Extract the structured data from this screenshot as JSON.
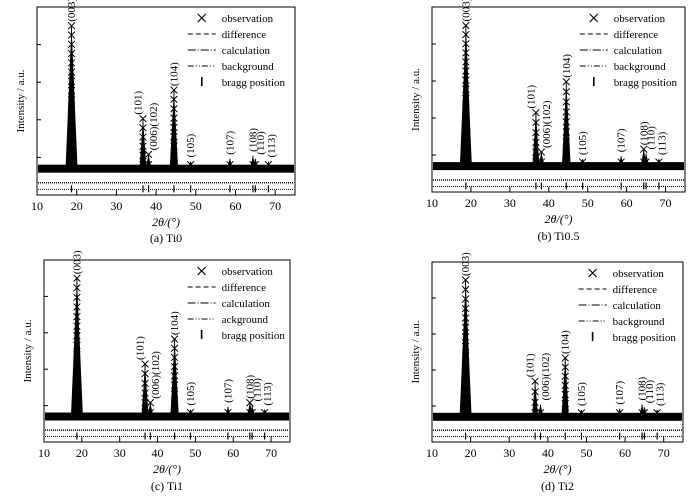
{
  "figure": {
    "panels": [
      {
        "caption": "(a) Ti0"
      },
      {
        "caption": "(b) Ti0.5"
      },
      {
        "caption": "(c) Ti1"
      },
      {
        "caption": "(d) Ti2"
      }
    ]
  },
  "chart_data": [
    {
      "type": "scatter",
      "caption": "(a) Ti0",
      "xlabel": "2θ/(°)",
      "ylabel": "Intensity / a.u.",
      "xlim": [
        10,
        75
      ],
      "xticks": [
        10,
        20,
        30,
        40,
        50,
        60,
        70
      ],
      "ylim": [
        0,
        100
      ],
      "legend": [
        "observation",
        "difference",
        "calculation",
        "background",
        "bragg position"
      ],
      "peaks": [
        {
          "label": "(003)",
          "x": 18.7,
          "y": 100
        },
        {
          "label": "(101)",
          "x": 36.7,
          "y": 35
        },
        {
          "label": "(006)(102)",
          "x": 38.1,
          "y": 10
        },
        {
          "label": "(104)",
          "x": 44.5,
          "y": 55
        },
        {
          "label": "(105)",
          "x": 48.7,
          "y": 5
        },
        {
          "label": "(107)",
          "x": 58.6,
          "y": 7
        },
        {
          "label": "(108)",
          "x": 64.4,
          "y": 9
        },
        {
          "label": "(110)",
          "x": 65.0,
          "y": 7
        },
        {
          "label": "(113)",
          "x": 68.3,
          "y": 5
        }
      ]
    },
    {
      "type": "scatter",
      "caption": "(b) Ti0.5",
      "xlabel": "2θ/(°)",
      "ylabel": "Intensity / a.u.",
      "xlim": [
        10,
        75
      ],
      "xticks": [
        10,
        20,
        30,
        40,
        50,
        60,
        70
      ],
      "ylim": [
        0,
        100
      ],
      "legend": [
        "observation",
        "difference",
        "calculation",
        "background",
        "bragg position"
      ],
      "peaks": [
        {
          "label": "(003)",
          "x": 18.7,
          "y": 100
        },
        {
          "label": "(101)",
          "x": 36.7,
          "y": 38
        },
        {
          "label": "(006)(102)",
          "x": 38.1,
          "y": 10
        },
        {
          "label": "(104)",
          "x": 44.5,
          "y": 60
        },
        {
          "label": "(105)",
          "x": 48.7,
          "y": 5
        },
        {
          "label": "(107)",
          "x": 58.6,
          "y": 7
        },
        {
          "label": "(108)",
          "x": 64.4,
          "y": 12
        },
        {
          "label": "(110)",
          "x": 65.0,
          "y": 9
        },
        {
          "label": "(113)",
          "x": 68.3,
          "y": 5
        }
      ]
    },
    {
      "type": "scatter",
      "caption": "(c) Ti1",
      "xlabel": "2θ/(°)",
      "ylabel": "Intensity / a.u.",
      "xlim": [
        10,
        75
      ],
      "xticks": [
        10,
        20,
        30,
        40,
        50,
        60,
        70
      ],
      "ylim": [
        0,
        100
      ],
      "legend": [
        "observation",
        "difference",
        "calculation",
        "ackground",
        "bragg position"
      ],
      "peaks": [
        {
          "label": "(003)",
          "x": 18.7,
          "y": 100
        },
        {
          "label": "(101)",
          "x": 36.7,
          "y": 38
        },
        {
          "label": "(006)(102)",
          "x": 38.1,
          "y": 10
        },
        {
          "label": "(104)",
          "x": 44.5,
          "y": 56
        },
        {
          "label": "(105)",
          "x": 48.7,
          "y": 5
        },
        {
          "label": "(107)",
          "x": 58.6,
          "y": 7
        },
        {
          "label": "(108)",
          "x": 64.4,
          "y": 10
        },
        {
          "label": "(110)",
          "x": 65.0,
          "y": 8
        },
        {
          "label": "(113)",
          "x": 68.3,
          "y": 5
        }
      ]
    },
    {
      "type": "scatter",
      "caption": "(d) Ti2",
      "xlabel": "2θ/(°)",
      "ylabel": "Intensity / a.u.",
      "xlim": [
        10,
        75
      ],
      "xticks": [
        10,
        20,
        30,
        40,
        50,
        60,
        70
      ],
      "ylim": [
        0,
        100
      ],
      "legend": [
        "observation",
        "difference",
        "calculation",
        "background",
        "bragg position"
      ],
      "peaks": [
        {
          "label": "(003)",
          "x": 18.7,
          "y": 100
        },
        {
          "label": "(101)",
          "x": 36.7,
          "y": 26
        },
        {
          "label": "(006)(102)",
          "x": 38.1,
          "y": 9
        },
        {
          "label": "(104)",
          "x": 44.5,
          "y": 43
        },
        {
          "label": "(105)",
          "x": 48.7,
          "y": 5
        },
        {
          "label": "(107)",
          "x": 58.6,
          "y": 6
        },
        {
          "label": "(108)",
          "x": 64.4,
          "y": 9
        },
        {
          "label": "(110)",
          "x": 65.0,
          "y": 7
        },
        {
          "label": "(113)",
          "x": 68.3,
          "y": 5
        }
      ]
    }
  ]
}
